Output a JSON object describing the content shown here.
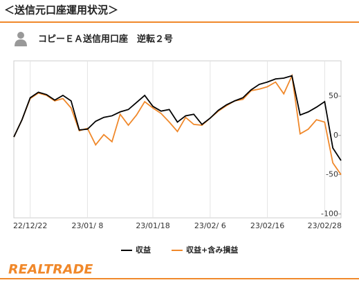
{
  "header": "＜送信元口座運用状況＞",
  "logo": "REALTRADE",
  "chart_data": {
    "type": "line",
    "title": "コピーＥＡ送信用口座　逆転２号",
    "categories": [
      null,
      null,
      "22/12/22",
      null,
      null,
      null,
      null,
      null,
      null,
      "23/01/ 8",
      null,
      null,
      null,
      null,
      null,
      null,
      null,
      "23/01/18",
      null,
      null,
      null,
      null,
      null,
      null,
      "23/02/ 6",
      null,
      null,
      null,
      null,
      null,
      null,
      "23/02/16",
      null,
      null,
      null,
      null,
      null,
      null,
      "23/02/28",
      null,
      null
    ],
    "series": [
      {
        "name": "収益",
        "color": "#000000",
        "values": [
          -2,
          20,
          48,
          55,
          52,
          45,
          51,
          44,
          7,
          8,
          18,
          23,
          25,
          30,
          33,
          42,
          51,
          37,
          31,
          33,
          17,
          25,
          27,
          14,
          22,
          32,
          39,
          44,
          48,
          58,
          65,
          68,
          72,
          73,
          76,
          26,
          30,
          36,
          43,
          -16,
          -32
        ]
      },
      {
        "name": "収益+含み損益",
        "color": "#f0882a",
        "values": [
          -2,
          20,
          47,
          54,
          51,
          44,
          47,
          35,
          6,
          9,
          -12,
          1,
          -8,
          27,
          13,
          26,
          43,
          35,
          28,
          17,
          5,
          23,
          14,
          13,
          22,
          31,
          38,
          44,
          46,
          57,
          59,
          62,
          68,
          53,
          76,
          2,
          8,
          20,
          17,
          -35,
          -50
        ]
      }
    ],
    "ylim": [
      -105,
      95
    ],
    "yticks": [
      50,
      0,
      -50,
      -100
    ],
    "grid": true,
    "legend": "bottom"
  }
}
